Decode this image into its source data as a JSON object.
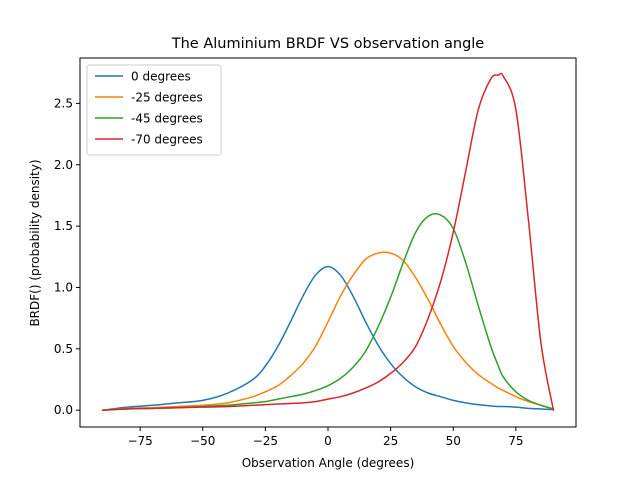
{
  "chart_data": {
    "type": "line",
    "title": "The Aluminium BRDF VS observation angle",
    "xlabel": "Observation Angle (degrees)",
    "ylabel": "BRDF() (probability density)",
    "xlim": [
      -99,
      99
    ],
    "ylim": [
      -0.137,
      2.87
    ],
    "xticks": [
      -75,
      -50,
      -25,
      0,
      25,
      50,
      75
    ],
    "xtick_labels": [
      "−75",
      "−50",
      "−25",
      "0",
      "25",
      "50",
      "75"
    ],
    "yticks": [
      0.0,
      0.5,
      1.0,
      1.5,
      2.0,
      2.5
    ],
    "ytick_labels": [
      "0.0",
      "0.5",
      "1.0",
      "1.5",
      "2.0",
      "2.5"
    ],
    "grid": false,
    "legend_position": "top-left",
    "x": [
      -90,
      -80,
      -70,
      -60,
      -50,
      -40,
      -30,
      -25,
      -20,
      -15,
      -10,
      -5,
      0,
      5,
      10,
      15,
      20,
      25,
      30,
      35,
      40,
      45,
      50,
      55,
      60,
      65,
      68,
      70,
      75,
      80,
      85,
      90
    ],
    "series": [
      {
        "name": "0 degrees",
        "color": "#1f77b4",
        "values": [
          0.0,
          0.025,
          0.04,
          0.06,
          0.08,
          0.14,
          0.25,
          0.36,
          0.52,
          0.72,
          0.93,
          1.1,
          1.17,
          1.1,
          0.93,
          0.72,
          0.53,
          0.38,
          0.27,
          0.19,
          0.14,
          0.11,
          0.08,
          0.06,
          0.045,
          0.035,
          0.03,
          0.03,
          0.025,
          0.015,
          0.01,
          0.005
        ]
      },
      {
        "name": "-25 degrees",
        "color": "#ff7f0e",
        "values": [
          0.0,
          0.015,
          0.02,
          0.03,
          0.04,
          0.06,
          0.11,
          0.15,
          0.2,
          0.28,
          0.38,
          0.52,
          0.72,
          0.93,
          1.1,
          1.23,
          1.28,
          1.28,
          1.22,
          1.08,
          0.9,
          0.7,
          0.52,
          0.39,
          0.29,
          0.22,
          0.18,
          0.16,
          0.11,
          0.07,
          0.04,
          0.01
        ]
      },
      {
        "name": "-45 degrees",
        "color": "#2ca02c",
        "values": [
          0.0,
          0.012,
          0.015,
          0.02,
          0.03,
          0.04,
          0.06,
          0.07,
          0.09,
          0.11,
          0.13,
          0.16,
          0.2,
          0.26,
          0.35,
          0.48,
          0.68,
          0.92,
          1.2,
          1.45,
          1.58,
          1.59,
          1.48,
          1.2,
          0.85,
          0.52,
          0.36,
          0.27,
          0.15,
          0.08,
          0.04,
          0.01
        ]
      },
      {
        "name": "-70 degrees",
        "color": "#d62728",
        "values": [
          0.0,
          0.01,
          0.015,
          0.02,
          0.025,
          0.03,
          0.04,
          0.045,
          0.05,
          0.055,
          0.06,
          0.07,
          0.09,
          0.11,
          0.14,
          0.18,
          0.23,
          0.3,
          0.39,
          0.52,
          0.75,
          1.05,
          1.45,
          1.95,
          2.45,
          2.7,
          2.73,
          2.72,
          2.45,
          1.55,
          0.55,
          0.0
        ]
      }
    ]
  }
}
